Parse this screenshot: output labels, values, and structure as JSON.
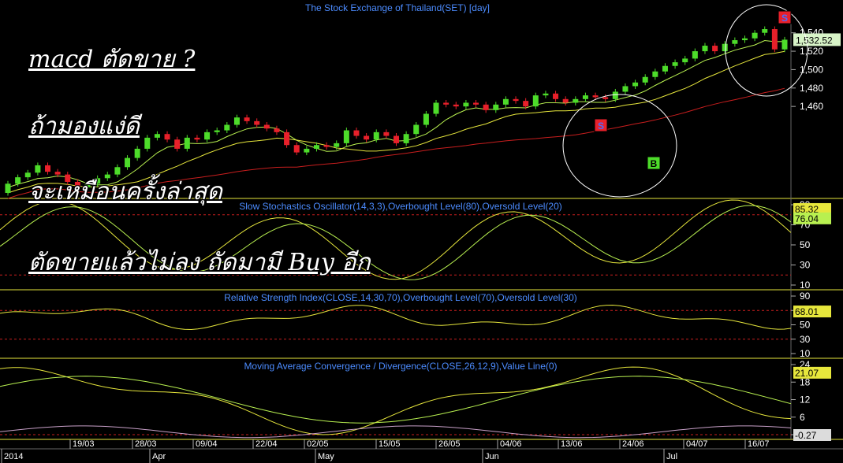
{
  "chart_data": {
    "type": "candlestick",
    "title": "The Stock Exchange of Thailand(SET) [day]",
    "annotations": {
      "line1": "macd ตัดขาย ?",
      "line2": "ถ้ามองแง่ดี",
      "line3": "จะเหมือนครั้งล่าสุด",
      "line4": "ตัดขายแล้วไม่ลง ถัดมามี Buy อีก"
    },
    "signals": [
      {
        "label": "S",
        "type": "sell",
        "color": "#e8202a"
      },
      {
        "label": "B",
        "type": "buy",
        "color": "#4ddc2a"
      },
      {
        "label": "S",
        "type": "sell",
        "color": "#e8202a"
      }
    ],
    "price_panel": {
      "y_ticks": [
        "1,540",
        "1,520",
        "1,500",
        "1,480",
        "1,460"
      ],
      "last_value": "1,532.52",
      "candles_approx": [
        [
          1366,
          1376
        ],
        [
          1376,
          1383
        ],
        [
          1383,
          1388
        ],
        [
          1388,
          1396
        ],
        [
          1396,
          1389
        ],
        [
          1389,
          1386
        ],
        [
          1386,
          1378
        ],
        [
          1378,
          1372
        ],
        [
          1372,
          1376
        ],
        [
          1376,
          1382
        ],
        [
          1382,
          1386
        ],
        [
          1386,
          1394
        ],
        [
          1394,
          1404
        ],
        [
          1404,
          1414
        ],
        [
          1414,
          1426
        ],
        [
          1426,
          1430
        ],
        [
          1430,
          1424
        ],
        [
          1424,
          1414
        ],
        [
          1414,
          1426
        ],
        [
          1426,
          1424
        ],
        [
          1424,
          1432
        ],
        [
          1432,
          1434
        ],
        [
          1434,
          1440
        ],
        [
          1440,
          1448
        ],
        [
          1448,
          1444
        ],
        [
          1444,
          1440
        ],
        [
          1440,
          1436
        ],
        [
          1436,
          1432
        ],
        [
          1432,
          1418
        ],
        [
          1418,
          1410
        ],
        [
          1410,
          1414
        ],
        [
          1414,
          1418
        ],
        [
          1418,
          1416
        ],
        [
          1416,
          1420
        ],
        [
          1420,
          1434
        ],
        [
          1434,
          1428
        ],
        [
          1428,
          1424
        ],
        [
          1424,
          1432
        ],
        [
          1432,
          1428
        ],
        [
          1428,
          1420
        ],
        [
          1420,
          1430
        ],
        [
          1430,
          1440
        ],
        [
          1440,
          1452
        ],
        [
          1452,
          1464
        ],
        [
          1464,
          1462
        ],
        [
          1462,
          1460
        ],
        [
          1460,
          1464
        ],
        [
          1464,
          1462
        ],
        [
          1462,
          1456
        ],
        [
          1456,
          1462
        ],
        [
          1462,
          1468
        ],
        [
          1468,
          1466
        ],
        [
          1466,
          1460
        ],
        [
          1460,
          1472
        ],
        [
          1472,
          1474
        ],
        [
          1474,
          1468
        ],
        [
          1468,
          1464
        ],
        [
          1464,
          1468
        ],
        [
          1468,
          1472
        ],
        [
          1472,
          1470
        ],
        [
          1470,
          1468
        ],
        [
          1468,
          1476
        ],
        [
          1476,
          1482
        ],
        [
          1482,
          1486
        ],
        [
          1486,
          1492
        ],
        [
          1492,
          1498
        ],
        [
          1498,
          1504
        ],
        [
          1504,
          1508
        ],
        [
          1508,
          1512
        ],
        [
          1512,
          1520
        ],
        [
          1520,
          1526
        ],
        [
          1526,
          1520
        ],
        [
          1520,
          1528
        ],
        [
          1528,
          1532
        ],
        [
          1532,
          1534
        ],
        [
          1534,
          1540
        ],
        [
          1540,
          1544
        ],
        [
          1544,
          1522
        ],
        [
          1522,
          1532.52
        ]
      ]
    },
    "stochastic_panel": {
      "title": "Slow Stochastics Oscillator(14,3,3),Overbought Level(80),Oversold Level(20)",
      "y_ticks": [
        "90",
        "70",
        "50",
        "30",
        "10"
      ],
      "last_values": [
        "85.32",
        "76.04"
      ]
    },
    "rsi_panel": {
      "title": "Relative Strength Index(CLOSE,14,30,70),Overbought Level(70),Oversold Level(30)",
      "y_ticks": [
        "90",
        "70",
        "50",
        "30",
        "10"
      ],
      "last_value": "68.01"
    },
    "macd_panel": {
      "title": "Moving Average Convergence / Divergence(CLOSE,26,12,9),Value Line(0)",
      "y_ticks": [
        "24",
        "18",
        "12",
        "6",
        "0"
      ],
      "last_values": [
        "21.07",
        "-0.27"
      ]
    },
    "x_axis": {
      "dates": [
        "19/03",
        "28/03",
        "09/04",
        "22/04",
        "02/05",
        "15/05",
        "26/05",
        "04/06",
        "13/06",
        "24/06",
        "04/07",
        "16/07"
      ],
      "months": [
        "2014",
        "Apr",
        "May",
        "Jun",
        "Jul"
      ]
    },
    "colors": {
      "up": "#4ddc2a",
      "down": "#e8202a",
      "line_yellow": "#e6e63c",
      "line_green": "#b8f050",
      "line_red": "#c81e1e",
      "line_white": "#ffffff",
      "title_blue": "#4c8cff"
    }
  }
}
